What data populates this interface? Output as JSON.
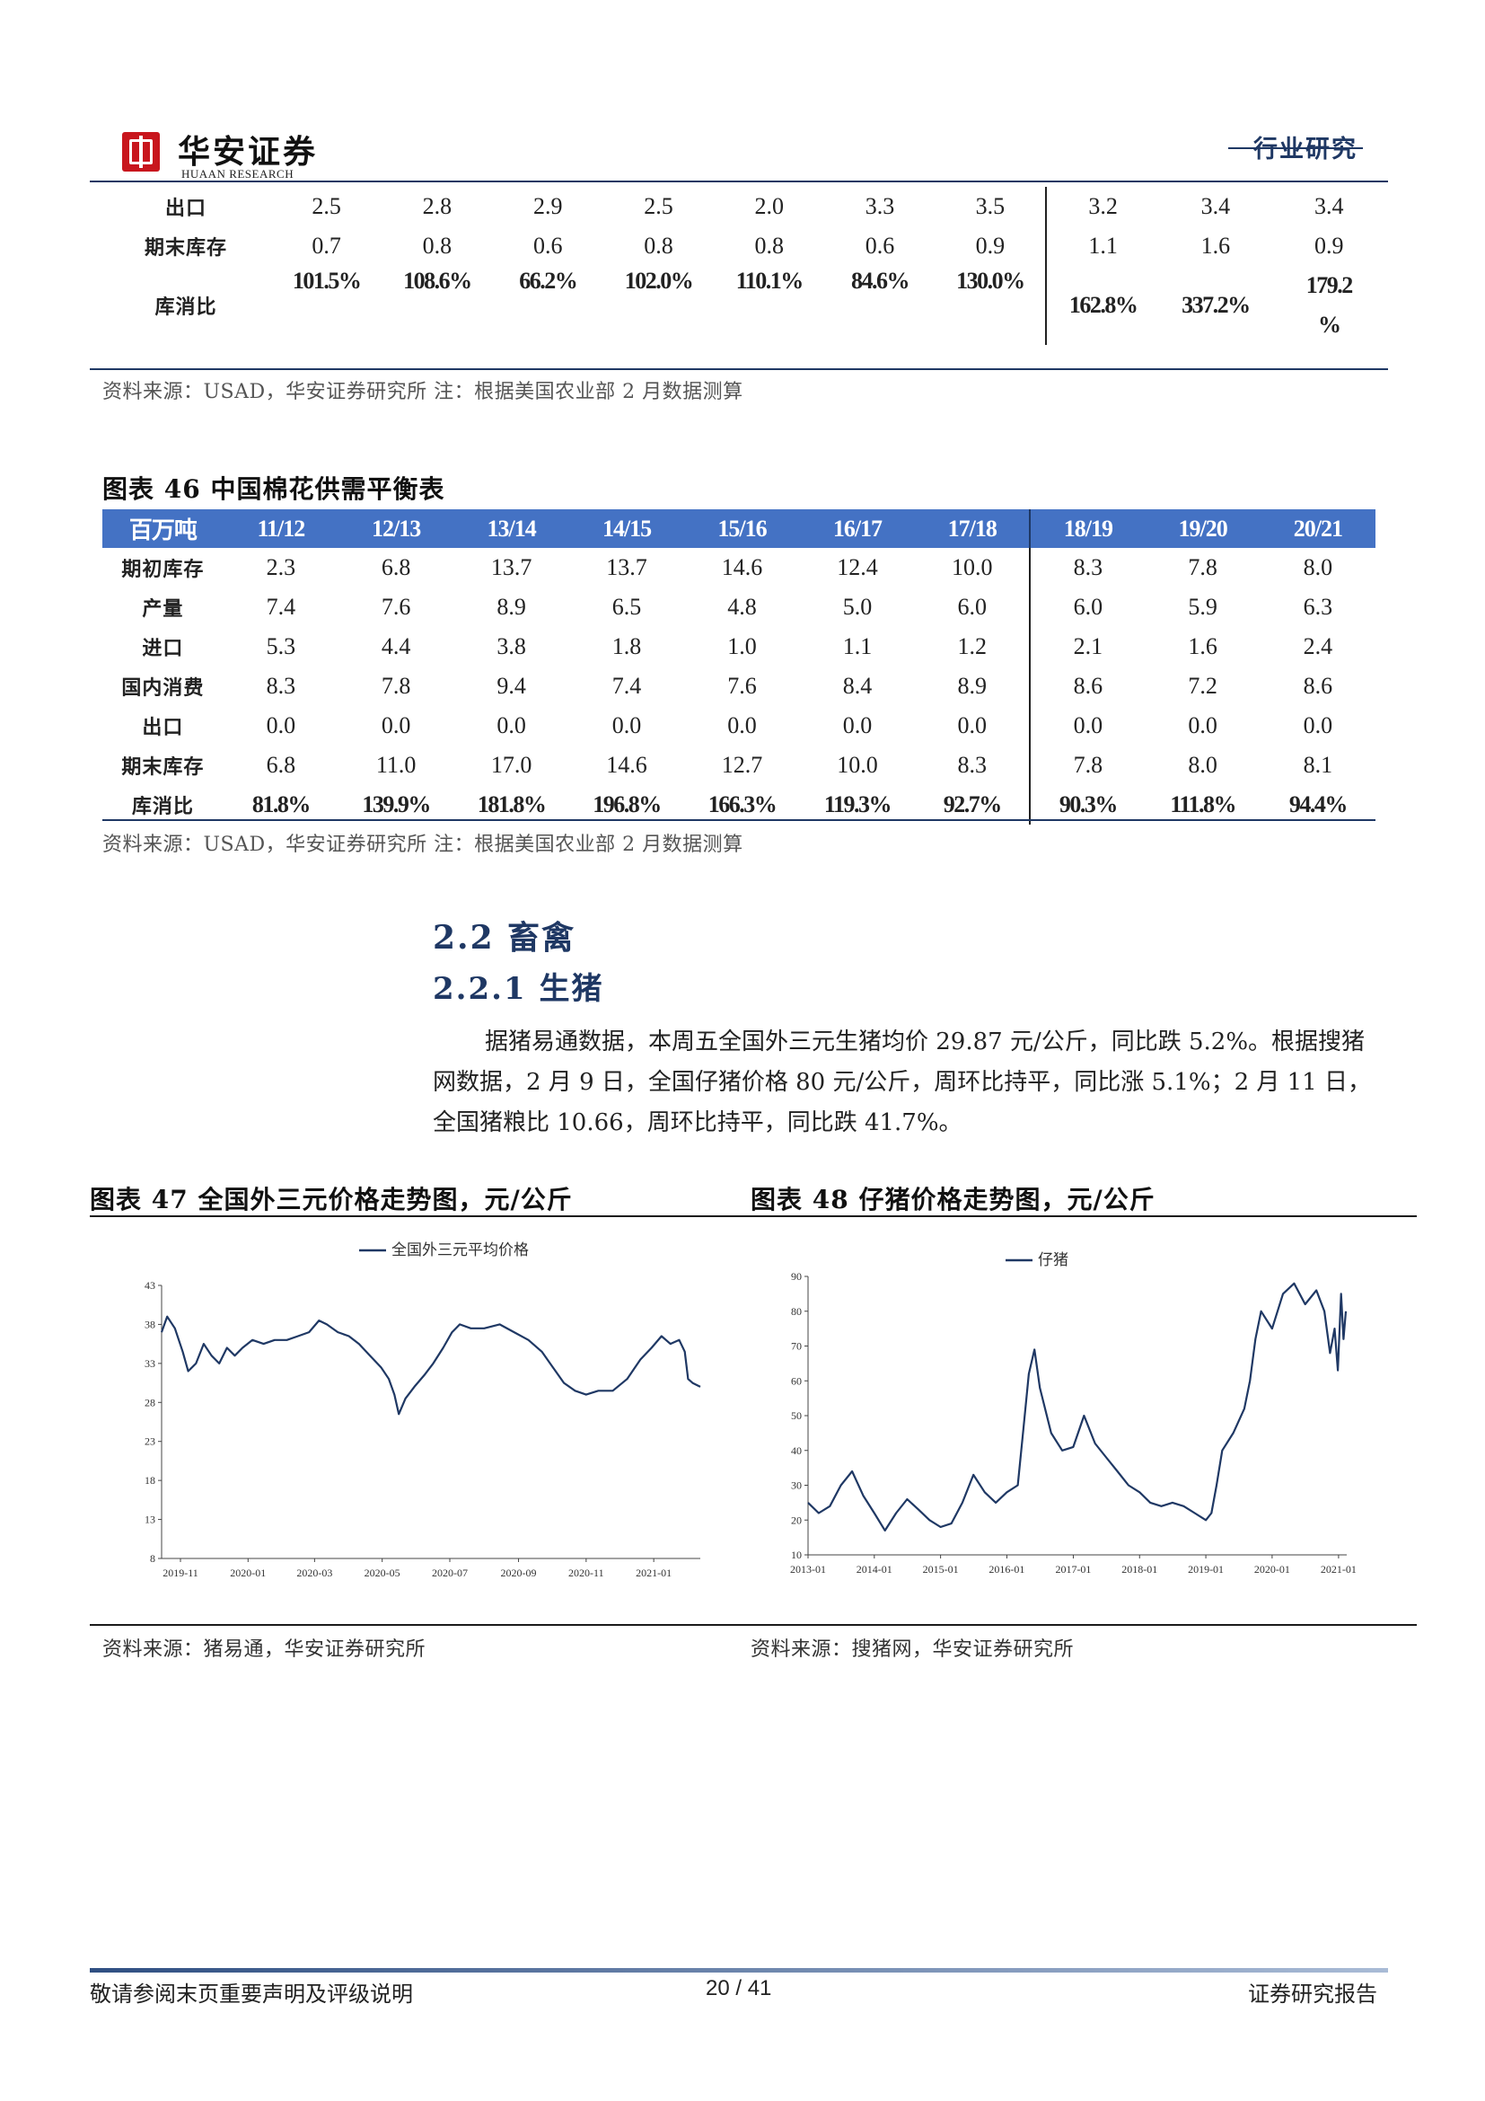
{
  "header": {
    "logo_cn": "华安证券",
    "logo_en": "HUAAN RESEARCH",
    "section": "行业研究"
  },
  "table45_tail": {
    "rows": [
      {
        "label": "出口",
        "values": [
          "2.5",
          "2.8",
          "2.9",
          "2.5",
          "2.0",
          "3.3",
          "3.5",
          "3.2",
          "3.4",
          "3.4"
        ]
      },
      {
        "label": "期末库存",
        "values": [
          "0.7",
          "0.8",
          "0.6",
          "0.8",
          "0.8",
          "0.6",
          "0.9",
          "1.1",
          "1.6",
          "0.9"
        ]
      },
      {
        "label": "库消比",
        "values": [
          "101.5%",
          "108.6%",
          "66.2%",
          "102.0%",
          "110.1%",
          "84.6%",
          "130.0%",
          "162.8%",
          "337.2%",
          "179.2%"
        ]
      }
    ],
    "last_ratio_line1": "179.2",
    "last_ratio_line2": "%",
    "source": "资料来源：USAD，华安证券研究所 注：根据美国农业部 2 月数据测算"
  },
  "table46": {
    "caption": "图表 46 中国棉花供需平衡表",
    "unit": "百万吨",
    "columns": [
      "11/12",
      "12/13",
      "13/14",
      "14/15",
      "15/16",
      "16/17",
      "17/18",
      "18/19",
      "19/20",
      "20/21"
    ],
    "rows": [
      {
        "label": "期初库存",
        "values": [
          "2.3",
          "6.8",
          "13.7",
          "13.7",
          "14.6",
          "12.4",
          "10.0",
          "8.3",
          "7.8",
          "8.0"
        ]
      },
      {
        "label": "产量",
        "values": [
          "7.4",
          "7.6",
          "8.9",
          "6.5",
          "4.8",
          "5.0",
          "6.0",
          "6.0",
          "5.9",
          "6.3"
        ]
      },
      {
        "label": "进口",
        "values": [
          "5.3",
          "4.4",
          "3.8",
          "1.8",
          "1.0",
          "1.1",
          "1.2",
          "2.1",
          "1.6",
          "2.4"
        ]
      },
      {
        "label": "国内消费",
        "values": [
          "8.3",
          "7.8",
          "9.4",
          "7.4",
          "7.6",
          "8.4",
          "8.9",
          "8.6",
          "7.2",
          "8.6"
        ]
      },
      {
        "label": "出口",
        "values": [
          "0.0",
          "0.0",
          "0.0",
          "0.0",
          "0.0",
          "0.0",
          "0.0",
          "0.0",
          "0.0",
          "0.0"
        ]
      },
      {
        "label": "期末库存",
        "values": [
          "6.8",
          "11.0",
          "17.0",
          "14.6",
          "12.7",
          "10.0",
          "8.3",
          "7.8",
          "8.0",
          "8.1"
        ]
      },
      {
        "label": "库消比",
        "values": [
          "81.8%",
          "139.9%",
          "181.8%",
          "196.8%",
          "166.3%",
          "119.3%",
          "92.7%",
          "90.3%",
          "111.8%",
          "94.4%"
        ]
      }
    ],
    "source": "资料来源：USAD，华安证券研究所 注：根据美国农业部 2 月数据测算"
  },
  "section": {
    "h2": "2.2  畜禽",
    "h3": "2.2.1  生猪",
    "para_lines": [
      "据猪易通数据，本周五全国外三元生猪均价 29.87 元/公斤，同比跌 5.2%。根据搜猪",
      "网数据，2 月 9 日，全国仔猪价格 80 元/公斤，周环比持平，同比涨 5.1%；2 月 11 日，",
      "全国猪粮比 10.66，周环比持平，同比跌 41.7%。"
    ]
  },
  "figures": {
    "fig47_caption": "图表 47 全国外三元价格走势图，元/公斤",
    "fig48_caption": "图表 48  仔猪价格走势图，元/公斤",
    "fig47_source": "资料来源：猪易通，华安证券研究所",
    "fig48_source": "资料来源：搜猪网，华安证券研究所"
  },
  "chart_data": [
    {
      "type": "line",
      "legend_position": "top-center",
      "grid": false,
      "ylim": [
        8,
        43
      ],
      "yticks": [
        "8",
        "13",
        "18",
        "23",
        "28",
        "33",
        "38",
        "43"
      ],
      "xlim": [
        "2019-10-15",
        "2021-02-12"
      ],
      "xticks": [
        "2019-11",
        "2020-01",
        "2020-03",
        "2020-05",
        "2020-07",
        "2020-09",
        "2020-11",
        "2021-01"
      ],
      "series": [
        {
          "name": "全国外三元平均价格",
          "color": "#1f3864",
          "points": [
            [
              "2019-10-15",
              37.0
            ],
            [
              "2019-10-20",
              39.0
            ],
            [
              "2019-10-27",
              37.5
            ],
            [
              "2019-11-03",
              34.5
            ],
            [
              "2019-11-08",
              32.0
            ],
            [
              "2019-11-15",
              33.0
            ],
            [
              "2019-11-22",
              35.5
            ],
            [
              "2019-11-29",
              34.0
            ],
            [
              "2019-12-06",
              33.0
            ],
            [
              "2019-12-13",
              35.0
            ],
            [
              "2019-12-20",
              34.0
            ],
            [
              "2019-12-27",
              35.0
            ],
            [
              "2020-01-05",
              36.0
            ],
            [
              "2020-01-15",
              35.5
            ],
            [
              "2020-01-25",
              36.0
            ],
            [
              "2020-02-05",
              36.0
            ],
            [
              "2020-02-15",
              36.5
            ],
            [
              "2020-02-25",
              37.0
            ],
            [
              "2020-03-05",
              38.5
            ],
            [
              "2020-03-12",
              38.0
            ],
            [
              "2020-03-22",
              37.0
            ],
            [
              "2020-04-01",
              36.5
            ],
            [
              "2020-04-10",
              35.5
            ],
            [
              "2020-04-20",
              34.0
            ],
            [
              "2020-04-30",
              32.5
            ],
            [
              "2020-05-07",
              31.0
            ],
            [
              "2020-05-12",
              29.0
            ],
            [
              "2020-05-16",
              26.5
            ],
            [
              "2020-05-22",
              28.5
            ],
            [
              "2020-05-30",
              30.0
            ],
            [
              "2020-06-08",
              31.5
            ],
            [
              "2020-06-16",
              33.0
            ],
            [
              "2020-06-25",
              35.0
            ],
            [
              "2020-07-03",
              37.0
            ],
            [
              "2020-07-10",
              38.0
            ],
            [
              "2020-07-20",
              37.5
            ],
            [
              "2020-08-01",
              37.5
            ],
            [
              "2020-08-15",
              38.0
            ],
            [
              "2020-08-28",
              37.0
            ],
            [
              "2020-09-10",
              36.0
            ],
            [
              "2020-09-22",
              34.5
            ],
            [
              "2020-10-02",
              32.5
            ],
            [
              "2020-10-12",
              30.5
            ],
            [
              "2020-10-22",
              29.5
            ],
            [
              "2020-11-01",
              29.0
            ],
            [
              "2020-11-12",
              29.5
            ],
            [
              "2020-11-25",
              29.5
            ],
            [
              "2020-12-08",
              31.0
            ],
            [
              "2020-12-20",
              33.5
            ],
            [
              "2020-12-30",
              35.0
            ],
            [
              "2021-01-08",
              36.5
            ],
            [
              "2021-01-16",
              35.5
            ],
            [
              "2021-01-24",
              36.0
            ],
            [
              "2021-01-29",
              34.5
            ],
            [
              "2021-02-01",
              31.0
            ],
            [
              "2021-02-05",
              30.5
            ],
            [
              "2021-02-12",
              30.0
            ]
          ]
        }
      ]
    },
    {
      "type": "line",
      "legend_position": "top-center",
      "grid": false,
      "ylim": [
        10,
        90
      ],
      "yticks": [
        "10",
        "20",
        "30",
        "40",
        "50",
        "60",
        "70",
        "80",
        "90"
      ],
      "xlim": [
        "2013-01-01",
        "2021-02-15"
      ],
      "xticks": [
        "2013-01",
        "2014-01",
        "2015-01",
        "2016-01",
        "2017-01",
        "2018-01",
        "2019-01",
        "2020-01",
        "2021-01"
      ],
      "series": [
        {
          "name": "仔猪",
          "color": "#1f3864",
          "points": [
            [
              "2013-01-01",
              25
            ],
            [
              "2013-03-01",
              22
            ],
            [
              "2013-05-01",
              24
            ],
            [
              "2013-07-01",
              30
            ],
            [
              "2013-09-01",
              34
            ],
            [
              "2013-11-01",
              27
            ],
            [
              "2014-01-01",
              22
            ],
            [
              "2014-03-01",
              17
            ],
            [
              "2014-05-01",
              22
            ],
            [
              "2014-07-01",
              26
            ],
            [
              "2014-09-01",
              23
            ],
            [
              "2014-11-01",
              20
            ],
            [
              "2015-01-01",
              18
            ],
            [
              "2015-03-01",
              19
            ],
            [
              "2015-05-01",
              25
            ],
            [
              "2015-07-01",
              33
            ],
            [
              "2015-09-01",
              28
            ],
            [
              "2015-11-01",
              25
            ],
            [
              "2016-01-01",
              28
            ],
            [
              "2016-03-01",
              30
            ],
            [
              "2016-04-01",
              46
            ],
            [
              "2016-05-01",
              62
            ],
            [
              "2016-06-01",
              69
            ],
            [
              "2016-07-01",
              58
            ],
            [
              "2016-09-01",
              45
            ],
            [
              "2016-11-01",
              40
            ],
            [
              "2017-01-01",
              41
            ],
            [
              "2017-03-01",
              50
            ],
            [
              "2017-05-01",
              42
            ],
            [
              "2017-07-01",
              38
            ],
            [
              "2017-09-01",
              34
            ],
            [
              "2017-11-01",
              30
            ],
            [
              "2018-01-01",
              28
            ],
            [
              "2018-03-01",
              25
            ],
            [
              "2018-05-01",
              24
            ],
            [
              "2018-07-01",
              25
            ],
            [
              "2018-09-01",
              24
            ],
            [
              "2018-11-01",
              22
            ],
            [
              "2019-01-01",
              20
            ],
            [
              "2019-02-01",
              22
            ],
            [
              "2019-03-01",
              30
            ],
            [
              "2019-04-01",
              40
            ],
            [
              "2019-06-01",
              45
            ],
            [
              "2019-08-01",
              52
            ],
            [
              "2019-09-01",
              60
            ],
            [
              "2019-10-01",
              72
            ],
            [
              "2019-11-01",
              80
            ],
            [
              "2020-01-01",
              75
            ],
            [
              "2020-03-01",
              85
            ],
            [
              "2020-05-01",
              88
            ],
            [
              "2020-07-01",
              82
            ],
            [
              "2020-09-01",
              86
            ],
            [
              "2020-10-15",
              80
            ],
            [
              "2020-11-15",
              68
            ],
            [
              "2020-12-10",
              75
            ],
            [
              "2020-12-28",
              63
            ],
            [
              "2021-01-15",
              85
            ],
            [
              "2021-01-28",
              72
            ],
            [
              "2021-02-10",
              80
            ]
          ]
        }
      ]
    }
  ],
  "footer": {
    "left": "敬请参阅末页重要声明及评级说明",
    "center": "20 / 41",
    "right": "证券研究报告"
  }
}
